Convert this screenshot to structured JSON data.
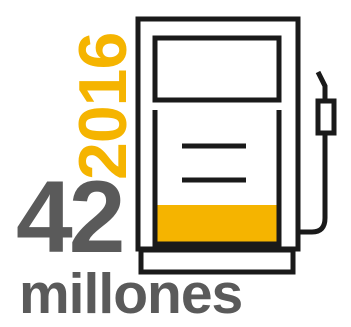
{
  "infographic": {
    "year": "2016",
    "value": "42",
    "unit": "millones",
    "icon": "fuel-pump-icon",
    "fill_level": 0.28
  },
  "colors": {
    "accent": "#F5B400",
    "text": "#5A5A5A",
    "outline": "#1A1A1A",
    "background": "#FFFFFF"
  }
}
